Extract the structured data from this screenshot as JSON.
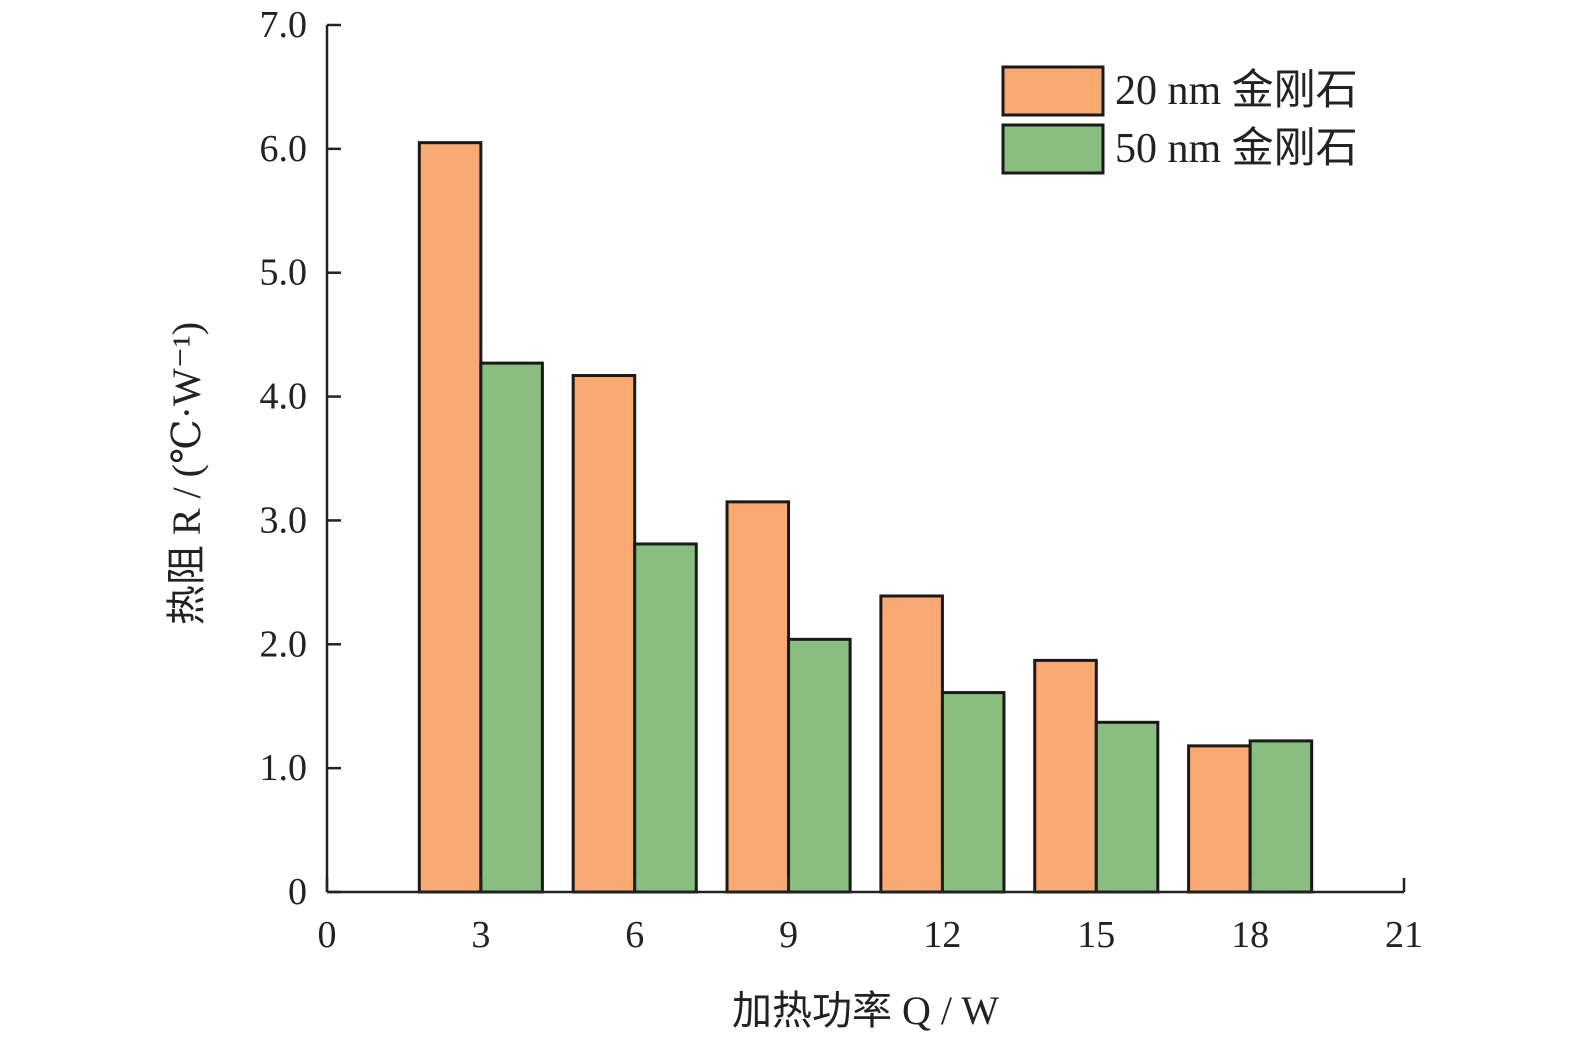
{
  "chart_data": {
    "type": "bar",
    "title": "",
    "xlabel": "加热功率 Q / W",
    "ylabel": "热阻 R / (℃·W⁻¹)",
    "xlim": [
      0,
      21
    ],
    "ylim": [
      0,
      7
    ],
    "xticks": [
      "0",
      "3",
      "6",
      "9",
      "12",
      "15",
      "18",
      "21"
    ],
    "yticks": [
      "0",
      "1.0",
      "2.0",
      "3.0",
      "4.0",
      "5.0",
      "6.0",
      "7.0"
    ],
    "categories": [
      3,
      6,
      9,
      12,
      15,
      18
    ],
    "series": [
      {
        "name": "20 nm 金刚石",
        "values": [
          6.05,
          4.17,
          3.15,
          2.39,
          1.87,
          1.18
        ],
        "color": "#F9AA72"
      },
      {
        "name": "50 nm 金刚石",
        "values": [
          4.27,
          2.81,
          2.04,
          1.61,
          1.37,
          1.22
        ],
        "color": "#8ABE80"
      }
    ],
    "legend": "top-right",
    "grid": false
  }
}
